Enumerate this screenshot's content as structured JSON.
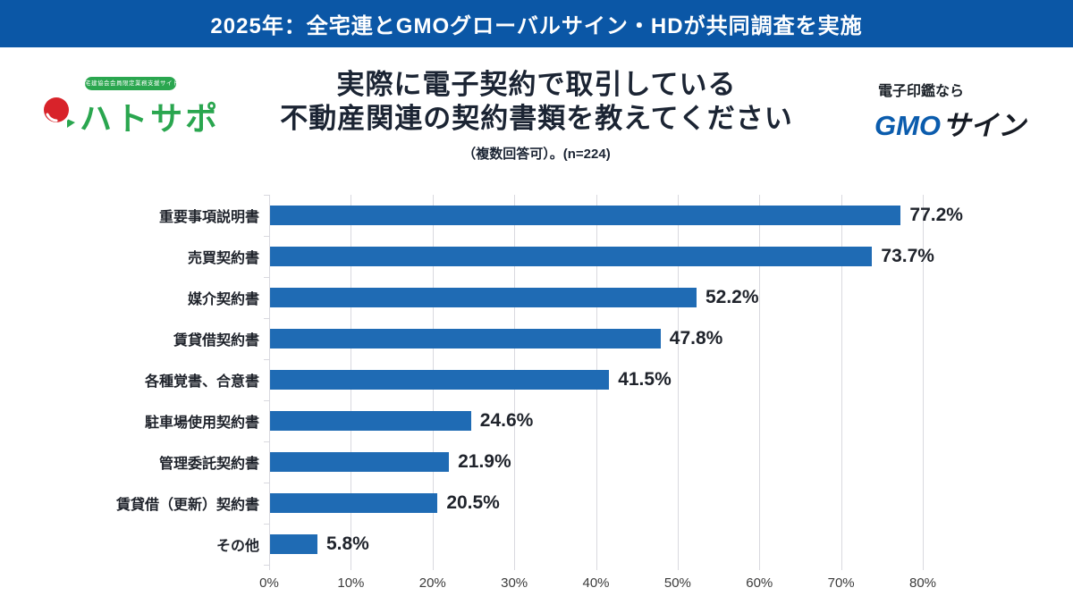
{
  "banner": {
    "text": "2025年：全宅連とGMOグローバルサイン・HDが共同調査を実施"
  },
  "title": {
    "line1": "実際に電子契約で取引している",
    "line2": "不動産関連の契約書類を教えてください",
    "subtitle": "（複数回答可）。(n=224)"
  },
  "logos": {
    "hatosapo": {
      "tagline": "宅建協会会員限定業務支援サイト",
      "name": "ハトサポ",
      "green": "#2aa64f",
      "red": "#d8232a"
    },
    "gmo": {
      "tagline": "電子印鑑なら",
      "brand": "GMO",
      "suffix": "サイン",
      "blue": "#0b5cad",
      "dark": "#161b24"
    }
  },
  "colors": {
    "banner_bg": "#0b57a6",
    "bar_blue": "#1f6bb4",
    "title_text": "#1b2433",
    "grid": "#d9d9df"
  },
  "chart_data": {
    "type": "bar",
    "orientation": "horizontal",
    "title": "実際に電子契約で取引している不動産関連の契約書類を教えてください（複数回答可）。(n=224)",
    "categories": [
      "重要事項説明書",
      "売買契約書",
      "媒介契約書",
      "賃貸借契約書",
      "各種覚書、合意書",
      "駐車場使用契約書",
      "管理委託契約書",
      "賃貸借（更新）契約書",
      "その他"
    ],
    "values": [
      77.2,
      73.7,
      52.2,
      47.8,
      41.5,
      24.6,
      21.9,
      20.5,
      5.8
    ],
    "value_labels": [
      "77.2%",
      "73.7%",
      "52.2%",
      "47.8%",
      "41.5%",
      "24.6%",
      "21.9%",
      "20.5%",
      "5.8%"
    ],
    "xlim": [
      0,
      80
    ],
    "x_ticks": [
      "0%",
      "10%",
      "20%",
      "30%",
      "40%",
      "50%",
      "60%",
      "70%",
      "80%"
    ],
    "grid": true,
    "legend": false,
    "bar_color": "#1f6bb4"
  }
}
